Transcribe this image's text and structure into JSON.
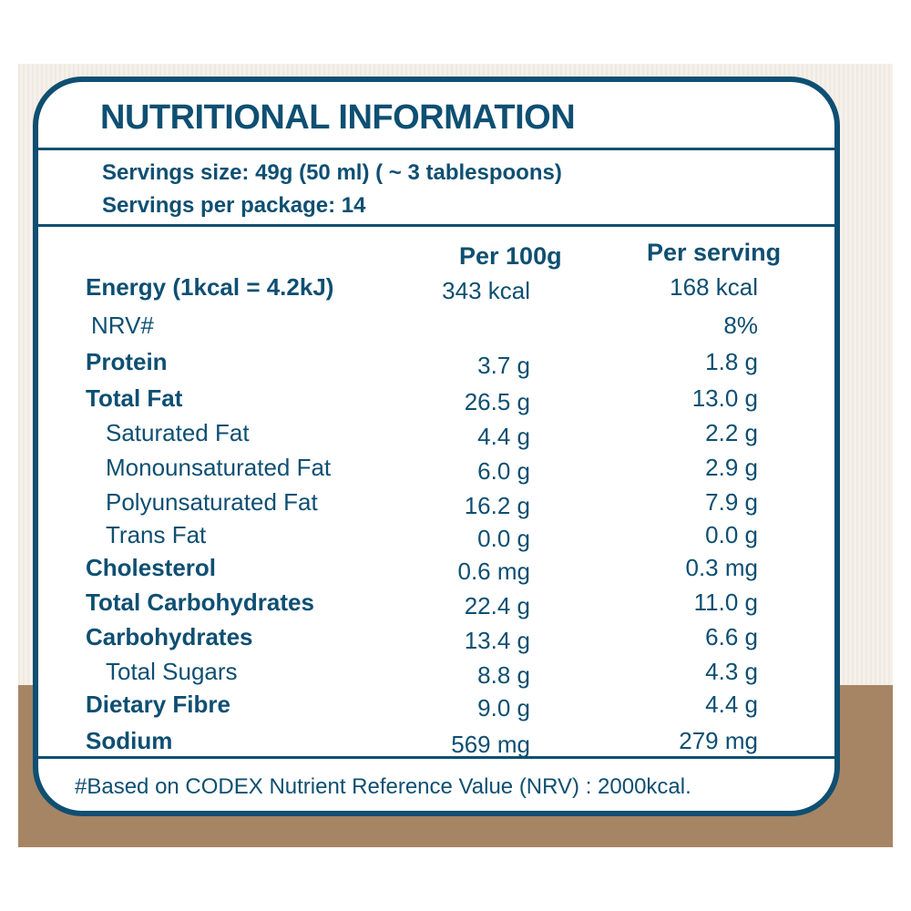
{
  "panel": {
    "title": "NUTRITIONAL INFORMATION",
    "serving_size": "Servings size: 49g (50 ml) ( ~ 3 tablespoons)",
    "servings_per_package": "Servings per package: 14"
  },
  "table": {
    "columns": [
      "Per 100g",
      "Per serving"
    ],
    "rows": [
      {
        "name": "Energy (1kcal = 4.2kJ)",
        "level": "main",
        "per100": "343 kcal",
        "serving": "168 kcal"
      },
      {
        "name": "NRV#",
        "level": "sub0",
        "per100": "",
        "serving": "8%"
      },
      {
        "name": "Protein",
        "level": "main",
        "per100": "3.7 g",
        "serving": "1.8 g"
      },
      {
        "name": "Total Fat",
        "level": "main",
        "per100": "26.5 g",
        "serving": "13.0 g"
      },
      {
        "name": "Saturated Fat",
        "level": "sub",
        "per100": "4.4 g",
        "serving": "2.2 g"
      },
      {
        "name": "Monounsaturated Fat",
        "level": "sub",
        "per100": "6.0 g",
        "serving": "2.9 g"
      },
      {
        "name": "Polyunsaturated Fat",
        "level": "sub",
        "per100": "16.2 g",
        "serving": "7.9 g"
      },
      {
        "name": "Trans Fat",
        "level": "sub",
        "per100": "0.0 g",
        "serving": "0.0 g"
      },
      {
        "name": "Cholesterol",
        "level": "main",
        "per100": "0.6 mg",
        "serving": "0.3 mg"
      },
      {
        "name": "Total Carbohydrates",
        "level": "main",
        "per100": "22.4 g",
        "serving": "11.0 g"
      },
      {
        "name": "Carbohydrates",
        "level": "main",
        "per100": "13.4 g",
        "serving": "6.6 g"
      },
      {
        "name": "Total Sugars",
        "level": "sub",
        "per100": "8.8 g",
        "serving": "4.3 g"
      },
      {
        "name": "Dietary Fibre",
        "level": "main",
        "per100": "9.0 g",
        "serving": "4.4 g"
      },
      {
        "name": "Sodium",
        "level": "main",
        "per100": "569 mg",
        "serving": "279 mg"
      }
    ]
  },
  "footnote": "#Based on CODEX Nutrient Reference Value (NRV) : 2000kcal.",
  "colors": {
    "ink": "#0e4f72",
    "band": "#a68564",
    "paper": "#efeae1"
  }
}
